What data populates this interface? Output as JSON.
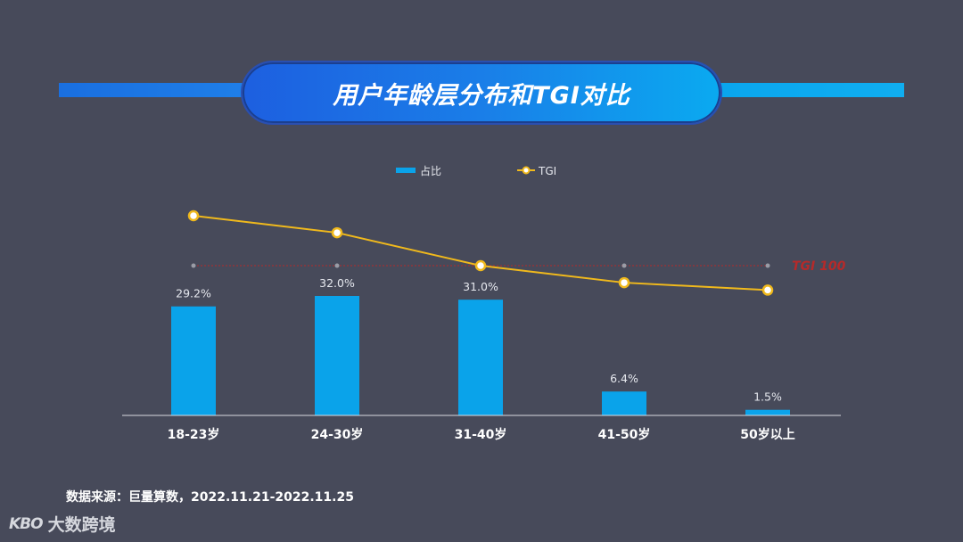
{
  "title": "用户年龄层分布和TGI对比",
  "source": "数据来源：巨量算数，2022.11.21-2022.11.25",
  "logo": {
    "mark": "KBO",
    "text": "大数跨境"
  },
  "colors": {
    "bar": "#0aa3ea",
    "line": "#f0b91c",
    "ref": "#b52a2a",
    "axis": "#d8dae0",
    "text": "#ffffff",
    "label": "#e6e8ee"
  },
  "chart_data": {
    "type": "bar",
    "categories": [
      "18-23岁",
      "24-30岁",
      "31-40岁",
      "41-50岁",
      "50岁以上"
    ],
    "series": [
      {
        "name": "占比",
        "type": "bar",
        "values": [
          29.2,
          32.0,
          31.0,
          6.4,
          1.5
        ],
        "labels": [
          "29.2%",
          "32.0%",
          "31.0%",
          "6.4%",
          "1.5%"
        ]
      },
      {
        "name": "TGI",
        "type": "line",
        "values": [
          147,
          131,
          100,
          84,
          77
        ]
      }
    ],
    "reference_line": {
      "label": "TGI 100",
      "value": 100
    },
    "ylim_bar": [
      0,
      40
    ],
    "ylim_line": [
      0,
      200
    ],
    "legend": "top-center",
    "grid": false
  }
}
